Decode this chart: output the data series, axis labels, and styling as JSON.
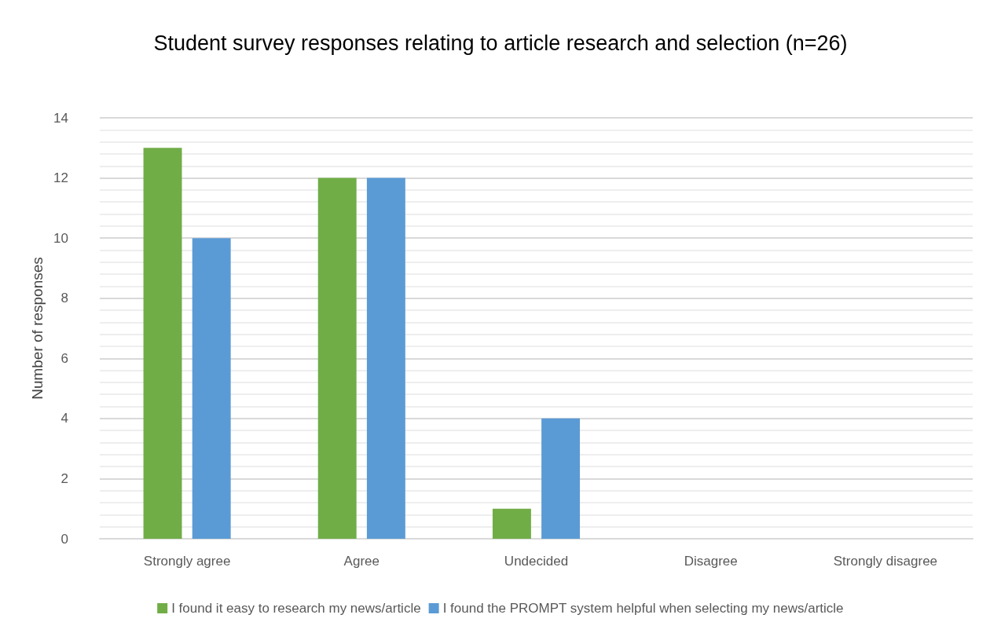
{
  "chart_data": {
    "type": "bar",
    "title": "Student survey responses relating to article research and selection (n=26)",
    "ylabel": "Number of responses",
    "categories": [
      "Strongly agree",
      "Agree",
      "Undecided",
      "Disagree",
      "Strongly disagree"
    ],
    "series": [
      {
        "name": "I found it easy to research my news/article",
        "color": "#70ad47",
        "values": [
          13,
          12,
          1,
          0,
          0
        ]
      },
      {
        "name": "I found the PROMPT system helpful when selecting my news/article",
        "color": "#5b9bd5",
        "values": [
          10,
          12,
          4,
          0,
          0
        ]
      }
    ],
    "ylim": [
      0,
      14
    ],
    "yticks": [
      0,
      2,
      4,
      6,
      8,
      10,
      12,
      14
    ],
    "grid": "y",
    "legend": "bottom"
  }
}
